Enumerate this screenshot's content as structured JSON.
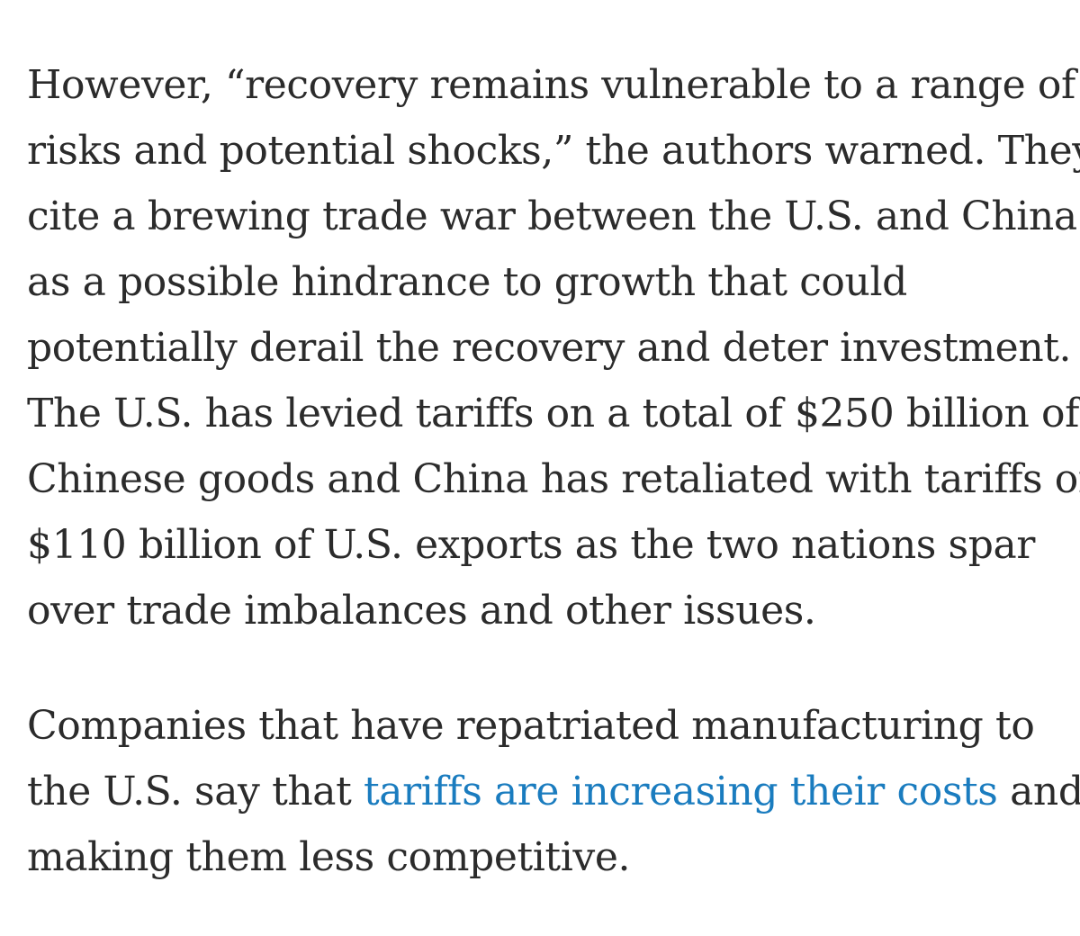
{
  "article": {
    "paragraph_1": {
      "lines": [
        "However, “recovery remains vulnerable to a range of",
        "risks and potential shocks,” the authors warned. They",
        "cite a brewing trade war between the U.S. and China",
        "as a possible hindrance to growth that could",
        "potentially derail the recovery and deter investment.",
        "The U.S. has levied tariffs on a total of $250 billion of",
        "Chinese goods and China has retaliated with tariffs on",
        "$110 billion of U.S. exports as the two nations spar",
        "over trade imbalances and other issues."
      ]
    },
    "paragraph_2": {
      "line_1": "Companies that have repatriated manufacturing to",
      "line_2_before_link": "the U.S. say that ",
      "link_text": "tariffs are increasing their costs",
      "line_2_after_link": " and",
      "line_3": "making them less competitive."
    }
  },
  "colors": {
    "text": "#2b2b2b",
    "link": "#1a7cbf",
    "background": "#ffffff"
  }
}
